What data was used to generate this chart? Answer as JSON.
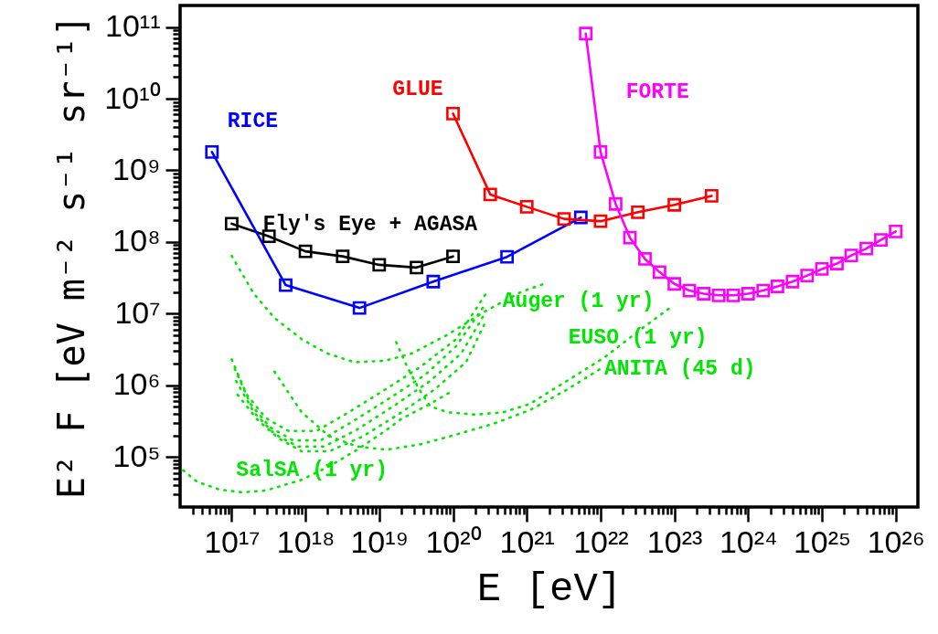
{
  "chart_data": {
    "type": "line",
    "log": "xy",
    "xlabel": "E [eV]",
    "ylabel": "E² F [eV m⁻² s⁻¹ sr⁻¹]",
    "xlim": [
      2e+16,
      2e+26
    ],
    "ylim": [
      20000.0,
      200000000000.0
    ],
    "xticks": [
      {
        "value": 3e+16,
        "label": null
      },
      {
        "value": 4e+16,
        "label": null
      },
      {
        "value": 5e+16,
        "label": null
      },
      {
        "value": 6e+16,
        "label": null
      },
      {
        "value": 7e+16,
        "label": null
      },
      {
        "value": 8e+16,
        "label": null
      },
      {
        "value": 9e+16,
        "label": null
      },
      {
        "value": 1e+17,
        "label": "10¹⁷"
      },
      {
        "value": 2e+17,
        "label": null
      },
      {
        "value": 3e+17,
        "label": null
      },
      {
        "value": 4e+17,
        "label": null
      },
      {
        "value": 5e+17,
        "label": null
      },
      {
        "value": 6e+17,
        "label": null
      },
      {
        "value": 7e+17,
        "label": null
      },
      {
        "value": 8e+17,
        "label": null
      },
      {
        "value": 9e+17,
        "label": null
      },
      {
        "value": 1e+18,
        "label": "10¹⁸"
      },
      {
        "value": 2e+18,
        "label": null
      },
      {
        "value": 3e+18,
        "label": null
      },
      {
        "value": 4e+18,
        "label": null
      },
      {
        "value": 5e+18,
        "label": null
      },
      {
        "value": 6e+18,
        "label": null
      },
      {
        "value": 7e+18,
        "label": null
      },
      {
        "value": 8e+18,
        "label": null
      },
      {
        "value": 9e+18,
        "label": null
      },
      {
        "value": 1e+19,
        "label": "10¹⁹"
      },
      {
        "value": 2e+19,
        "label": null
      },
      {
        "value": 3e+19,
        "label": null
      },
      {
        "value": 4e+19,
        "label": null
      },
      {
        "value": 5e+19,
        "label": null
      },
      {
        "value": 6e+19,
        "label": null
      },
      {
        "value": 7e+19,
        "label": null
      },
      {
        "value": 8e+19,
        "label": null
      },
      {
        "value": 9e+19,
        "label": null
      },
      {
        "value": 1e+20,
        "label": "10²⁰"
      },
      {
        "value": 2e+20,
        "label": null
      },
      {
        "value": 3e+20,
        "label": null
      },
      {
        "value": 4e+20,
        "label": null
      },
      {
        "value": 5e+20,
        "label": null
      },
      {
        "value": 6e+20,
        "label": null
      },
      {
        "value": 7e+20,
        "label": null
      },
      {
        "value": 8e+20,
        "label": null
      },
      {
        "value": 9e+20,
        "label": null
      },
      {
        "value": 1e+21,
        "label": "10²¹"
      },
      {
        "value": 2e+21,
        "label": null
      },
      {
        "value": 3e+21,
        "label": null
      },
      {
        "value": 4e+21,
        "label": null
      },
      {
        "value": 5e+21,
        "label": null
      },
      {
        "value": 6e+21,
        "label": null
      },
      {
        "value": 7e+21,
        "label": null
      },
      {
        "value": 8e+21,
        "label": null
      },
      {
        "value": 9e+21,
        "label": null
      },
      {
        "value": 1e+22,
        "label": "10²²"
      },
      {
        "value": 2e+22,
        "label": null
      },
      {
        "value": 3e+22,
        "label": null
      },
      {
        "value": 4e+22,
        "label": null
      },
      {
        "value": 5e+22,
        "label": null
      },
      {
        "value": 6e+22,
        "label": null
      },
      {
        "value": 7e+22,
        "label": null
      },
      {
        "value": 8e+22,
        "label": null
      },
      {
        "value": 9e+22,
        "label": null
      },
      {
        "value": 1e+23,
        "label": "10²³"
      },
      {
        "value": 2e+23,
        "label": null
      },
      {
        "value": 3e+23,
        "label": null
      },
      {
        "value": 4e+23,
        "label": null
      },
      {
        "value": 5e+23,
        "label": null
      },
      {
        "value": 6e+23,
        "label": null
      },
      {
        "value": 7e+23,
        "label": null
      },
      {
        "value": 8e+23,
        "label": null
      },
      {
        "value": 9e+23,
        "label": null
      },
      {
        "value": 1e+24,
        "label": "10²⁴"
      },
      {
        "value": 2e+24,
        "label": null
      },
      {
        "value": 3e+24,
        "label": null
      },
      {
        "value": 4e+24,
        "label": null
      },
      {
        "value": 5e+24,
        "label": null
      },
      {
        "value": 6e+24,
        "label": null
      },
      {
        "value": 7e+24,
        "label": null
      },
      {
        "value": 8e+24,
        "label": null
      },
      {
        "value": 9e+24,
        "label": null
      },
      {
        "value": 1e+25,
        "label": "10²⁵"
      },
      {
        "value": 2e+25,
        "label": null
      },
      {
        "value": 3e+25,
        "label": null
      },
      {
        "value": 4e+25,
        "label": null
      },
      {
        "value": 5e+25,
        "label": null
      },
      {
        "value": 6e+25,
        "label": null
      },
      {
        "value": 7e+25,
        "label": null
      },
      {
        "value": 8e+25,
        "label": null
      },
      {
        "value": 9e+25,
        "label": null
      },
      {
        "value": 1e+26,
        "label": "10²⁶"
      }
    ],
    "yticks": [
      {
        "value": 30000.0,
        "label": null
      },
      {
        "value": 40000.0,
        "label": null
      },
      {
        "value": 50000.0,
        "label": null
      },
      {
        "value": 60000.0,
        "label": null
      },
      {
        "value": 70000.0,
        "label": null
      },
      {
        "value": 80000.0,
        "label": null
      },
      {
        "value": 90000.0,
        "label": null
      },
      {
        "value": 100000.0,
        "label": "10⁵"
      },
      {
        "value": 200000.0,
        "label": null
      },
      {
        "value": 300000.0,
        "label": null
      },
      {
        "value": 400000.0,
        "label": null
      },
      {
        "value": 500000.0,
        "label": null
      },
      {
        "value": 600000.0,
        "label": null
      },
      {
        "value": 700000.0,
        "label": null
      },
      {
        "value": 800000.0,
        "label": null
      },
      {
        "value": 900000.0,
        "label": null
      },
      {
        "value": 1000000.0,
        "label": "10⁶"
      },
      {
        "value": 2000000.0,
        "label": null
      },
      {
        "value": 3000000.0,
        "label": null
      },
      {
        "value": 4000000.0,
        "label": null
      },
      {
        "value": 5000000.0,
        "label": null
      },
      {
        "value": 6000000.0,
        "label": null
      },
      {
        "value": 7000000.0,
        "label": null
      },
      {
        "value": 8000000.0,
        "label": null
      },
      {
        "value": 9000000.0,
        "label": null
      },
      {
        "value": 10000000.0,
        "label": "10⁷"
      },
      {
        "value": 20000000.0,
        "label": null
      },
      {
        "value": 30000000.0,
        "label": null
      },
      {
        "value": 40000000.0,
        "label": null
      },
      {
        "value": 50000000.0,
        "label": null
      },
      {
        "value": 60000000.0,
        "label": null
      },
      {
        "value": 70000000.0,
        "label": null
      },
      {
        "value": 80000000.0,
        "label": null
      },
      {
        "value": 90000000.0,
        "label": null
      },
      {
        "value": 100000000.0,
        "label": "10⁸"
      },
      {
        "value": 200000000.0,
        "label": null
      },
      {
        "value": 300000000.0,
        "label": null
      },
      {
        "value": 400000000.0,
        "label": null
      },
      {
        "value": 500000000.0,
        "label": null
      },
      {
        "value": 600000000.0,
        "label": null
      },
      {
        "value": 700000000.0,
        "label": null
      },
      {
        "value": 800000000.0,
        "label": null
      },
      {
        "value": 900000000.0,
        "label": null
      },
      {
        "value": 1000000000.0,
        "label": "10⁹"
      },
      {
        "value": 2000000000.0,
        "label": null
      },
      {
        "value": 3000000000.0,
        "label": null
      },
      {
        "value": 4000000000.0,
        "label": null
      },
      {
        "value": 5000000000.0,
        "label": null
      },
      {
        "value": 6000000000.0,
        "label": null
      },
      {
        "value": 7000000000.0,
        "label": null
      },
      {
        "value": 8000000000.0,
        "label": null
      },
      {
        "value": 9000000000.0,
        "label": null
      },
      {
        "value": 10000000000.0,
        "label": "10¹⁰"
      },
      {
        "value": 20000000000.0,
        "label": null
      },
      {
        "value": 30000000000.0,
        "label": null
      },
      {
        "value": 40000000000.0,
        "label": null
      },
      {
        "value": 50000000000.0,
        "label": null
      },
      {
        "value": 60000000000.0,
        "label": null
      },
      {
        "value": 70000000000.0,
        "label": null
      },
      {
        "value": 80000000000.0,
        "label": null
      },
      {
        "value": 90000000000.0,
        "label": null
      },
      {
        "value": 100000000000.0,
        "label": "10¹¹"
      }
    ],
    "series": [
      {
        "name": "Fly's Eye + AGASA",
        "color": "#000000",
        "marker": "square",
        "line_style": "solid",
        "x": [
          1e+17,
          3.2e+17,
          1e+18,
          3.2e+18,
          1e+19,
          3.2e+19,
          1e+20
        ],
        "values": [
          180000000.0,
          120000000.0,
          74000000.0,
          63000000.0,
          48000000.0,
          44000000.0,
          63000000.0
        ]
      },
      {
        "name": "RICE",
        "color": "#0000ff",
        "marker": "square",
        "line_style": "solid",
        "x": [
          5.4e+16,
          5.4e+17,
          5.4e+18,
          5.4e+19,
          5.4e+20,
          5.4e+21
        ],
        "values": [
          1800000000.0,
          25000000.0,
          12000000.0,
          28000000.0,
          62000000.0,
          220000000.0
        ]
      },
      {
        "name": "GLUE",
        "color": "#ff0000",
        "marker": "square",
        "line_style": "solid",
        "x": [
          1e+20,
          3.2e+20,
          1e+21,
          3.2e+21,
          1e+22,
          3.2e+22,
          1e+23,
          3.2e+23
        ],
        "values": [
          6200000000.0,
          460000000.0,
          310000000.0,
          210000000.0,
          195000000.0,
          260000000.0,
          330000000.0,
          440000000.0
        ]
      },
      {
        "name": "FORTE",
        "color": "#ff00ff",
        "marker": "square",
        "line_style": "solid",
        "x": [
          6.3e+21,
          1e+22,
          1.6e+22,
          2.5e+22,
          4e+22,
          6.3e+22,
          1e+23,
          1.6e+23,
          2.5e+23,
          4e+23,
          6.3e+23,
          1e+24,
          1.6e+24,
          2.5e+24,
          4e+24,
          6.3e+24,
          1e+25,
          1.6e+25,
          2.5e+25,
          4e+25,
          6.3e+25,
          1e+26
        ],
        "values": [
          81000000000.0,
          1800000000.0,
          340000000.0,
          115000000.0,
          58000000.0,
          38000000.0,
          26000000.0,
          21000000.0,
          19000000.0,
          18000000.0,
          18000000.0,
          19000000.0,
          21000000.0,
          24000000.0,
          28000000.0,
          34000000.0,
          42000000.0,
          50000000.0,
          65000000.0,
          81000000.0,
          107000000.0,
          140000000.0
        ]
      },
      {
        "name": "Auger (1 yr)",
        "color": "#00e600",
        "marker": "none",
        "line_style": "dotted",
        "x": [
          1e+17,
          2e+17,
          3.8e+17,
          8.9e+17,
          1.95e+18,
          4.6e+18,
          1.2e+19,
          2.8e+19,
          8.5e+19,
          2.7e+20,
          8.3e+20,
          1.7e+21
        ],
        "values": [
          64000000.0,
          19000000.0,
          8700000.0,
          4400000.0,
          2800000.0,
          2100000.0,
          2200000.0,
          2800000.0,
          5100000.0,
          10700000.0,
          20000000.0,
          26000000.0
        ]
      },
      {
        "color": "#00e600",
        "marker": "none",
        "line_style": "dotted",
        "x": [
          1e+17,
          1.6e+17,
          2.9e+17,
          5.9e+17,
          1.4e+18,
          3.7e+18,
          1.2e+19,
          3.6e+19,
          1.1e+20,
          2.8e+20
        ],
        "values": [
          2300000.0,
          740000.0,
          350000.0,
          230000.0,
          230000.0,
          410000.0,
          870000.0,
          1800000.0,
          4400000.0,
          19000000.0
        ]
      },
      {
        "color": "#00e600",
        "marker": "none",
        "line_style": "dotted",
        "x": [
          1.1e+17,
          1.8e+17,
          3.3e+17,
          6.8e+17,
          1.6e+18,
          4.3e+18,
          1.35e+19,
          4.2e+19,
          1.1e+20,
          2.8e+20
        ],
        "values": [
          1700000.0,
          550000.0,
          260000.0,
          170000.0,
          170000.0,
          310000.0,
          650000.0,
          1400000.0,
          3500000.0,
          14000000.0
        ]
      },
      {
        "color": "#00e600",
        "marker": "none",
        "line_style": "dotted",
        "x": [
          1.15e+17,
          2e+17,
          3.8e+17,
          7.8e+17,
          1.8e+18,
          5e+18,
          1.55e+19,
          4.9e+19,
          1.3e+20,
          2.8e+20
        ],
        "values": [
          1150000.0,
          420000.0,
          210000.0,
          140000.0,
          140000.0,
          240000.0,
          510000.0,
          1150000.0,
          2800000.0,
          10700000.0
        ]
      },
      {
        "color": "#00e600",
        "marker": "none",
        "line_style": "dotted",
        "x": [
          1.2e+17,
          2.3e+17,
          4.4e+17,
          8.9e+17,
          2.1e+18,
          5.8e+18,
          1.8e+19,
          5.6e+19,
          1.5e+20,
          2.8e+20
        ],
        "values": [
          740000.0,
          320000.0,
          180000.0,
          120000.0,
          120000.0,
          190000.0,
          390000.0,
          870000.0,
          2100000.0,
          7900000.0
        ]
      },
      {
        "name": "EUSO (1 yr)",
        "color": "#00e600",
        "marker": "none",
        "line_style": "dotted",
        "x": [
          1.7e+19,
          2.4e+19,
          3.5e+19,
          4.9e+19,
          8.5e+19,
          2e+20,
          4.8e+20,
          1.1e+21,
          3.5e+21,
          1.1e+22,
          3.4e+22,
          8.7e+22
        ],
        "values": [
          4000000.0,
          1800000.0,
          870000.0,
          510000.0,
          420000.0,
          390000.0,
          420000.0,
          550000.0,
          1150000.0,
          2400000.0,
          5900000.0,
          12000000.0
        ]
      },
      {
        "name": "ANITA (45 d)",
        "color": "#00e600",
        "marker": "none",
        "line_style": "dotted",
        "x": [
          3.8e+17,
          8.9e+17,
          2.1e+18,
          5e+18,
          1.26e+19,
          3.6e+19,
          8.5e+19,
          3.5e+20,
          1.1e+21,
          3.5e+21,
          1e+22
        ],
        "values": [
          1550000.0,
          420000.0,
          195000.0,
          140000.0,
          126000.0,
          150000.0,
          190000.0,
          290000.0,
          450000.0,
          870000.0,
          1700000.0
        ]
      },
      {
        "name": "SalSA (1 yr)",
        "color": "#00e600",
        "marker": "none",
        "line_style": "dotted",
        "x": [
          2.2e+16,
          3.4e+16,
          6.9e+16,
          1.4e+17,
          2.9e+17,
          8.9e+17,
          2.1e+18,
          5e+18,
          1.2e+19,
          2e+19,
          4.9e+19,
          9.3e+19
        ],
        "values": [
          65000.0,
          45000.0,
          35000.0,
          32000.0,
          34000.0,
          48000.0,
          74000.0,
          126000.0,
          230000.0,
          340000.0,
          550000.0,
          810000.0
        ]
      }
    ]
  }
}
